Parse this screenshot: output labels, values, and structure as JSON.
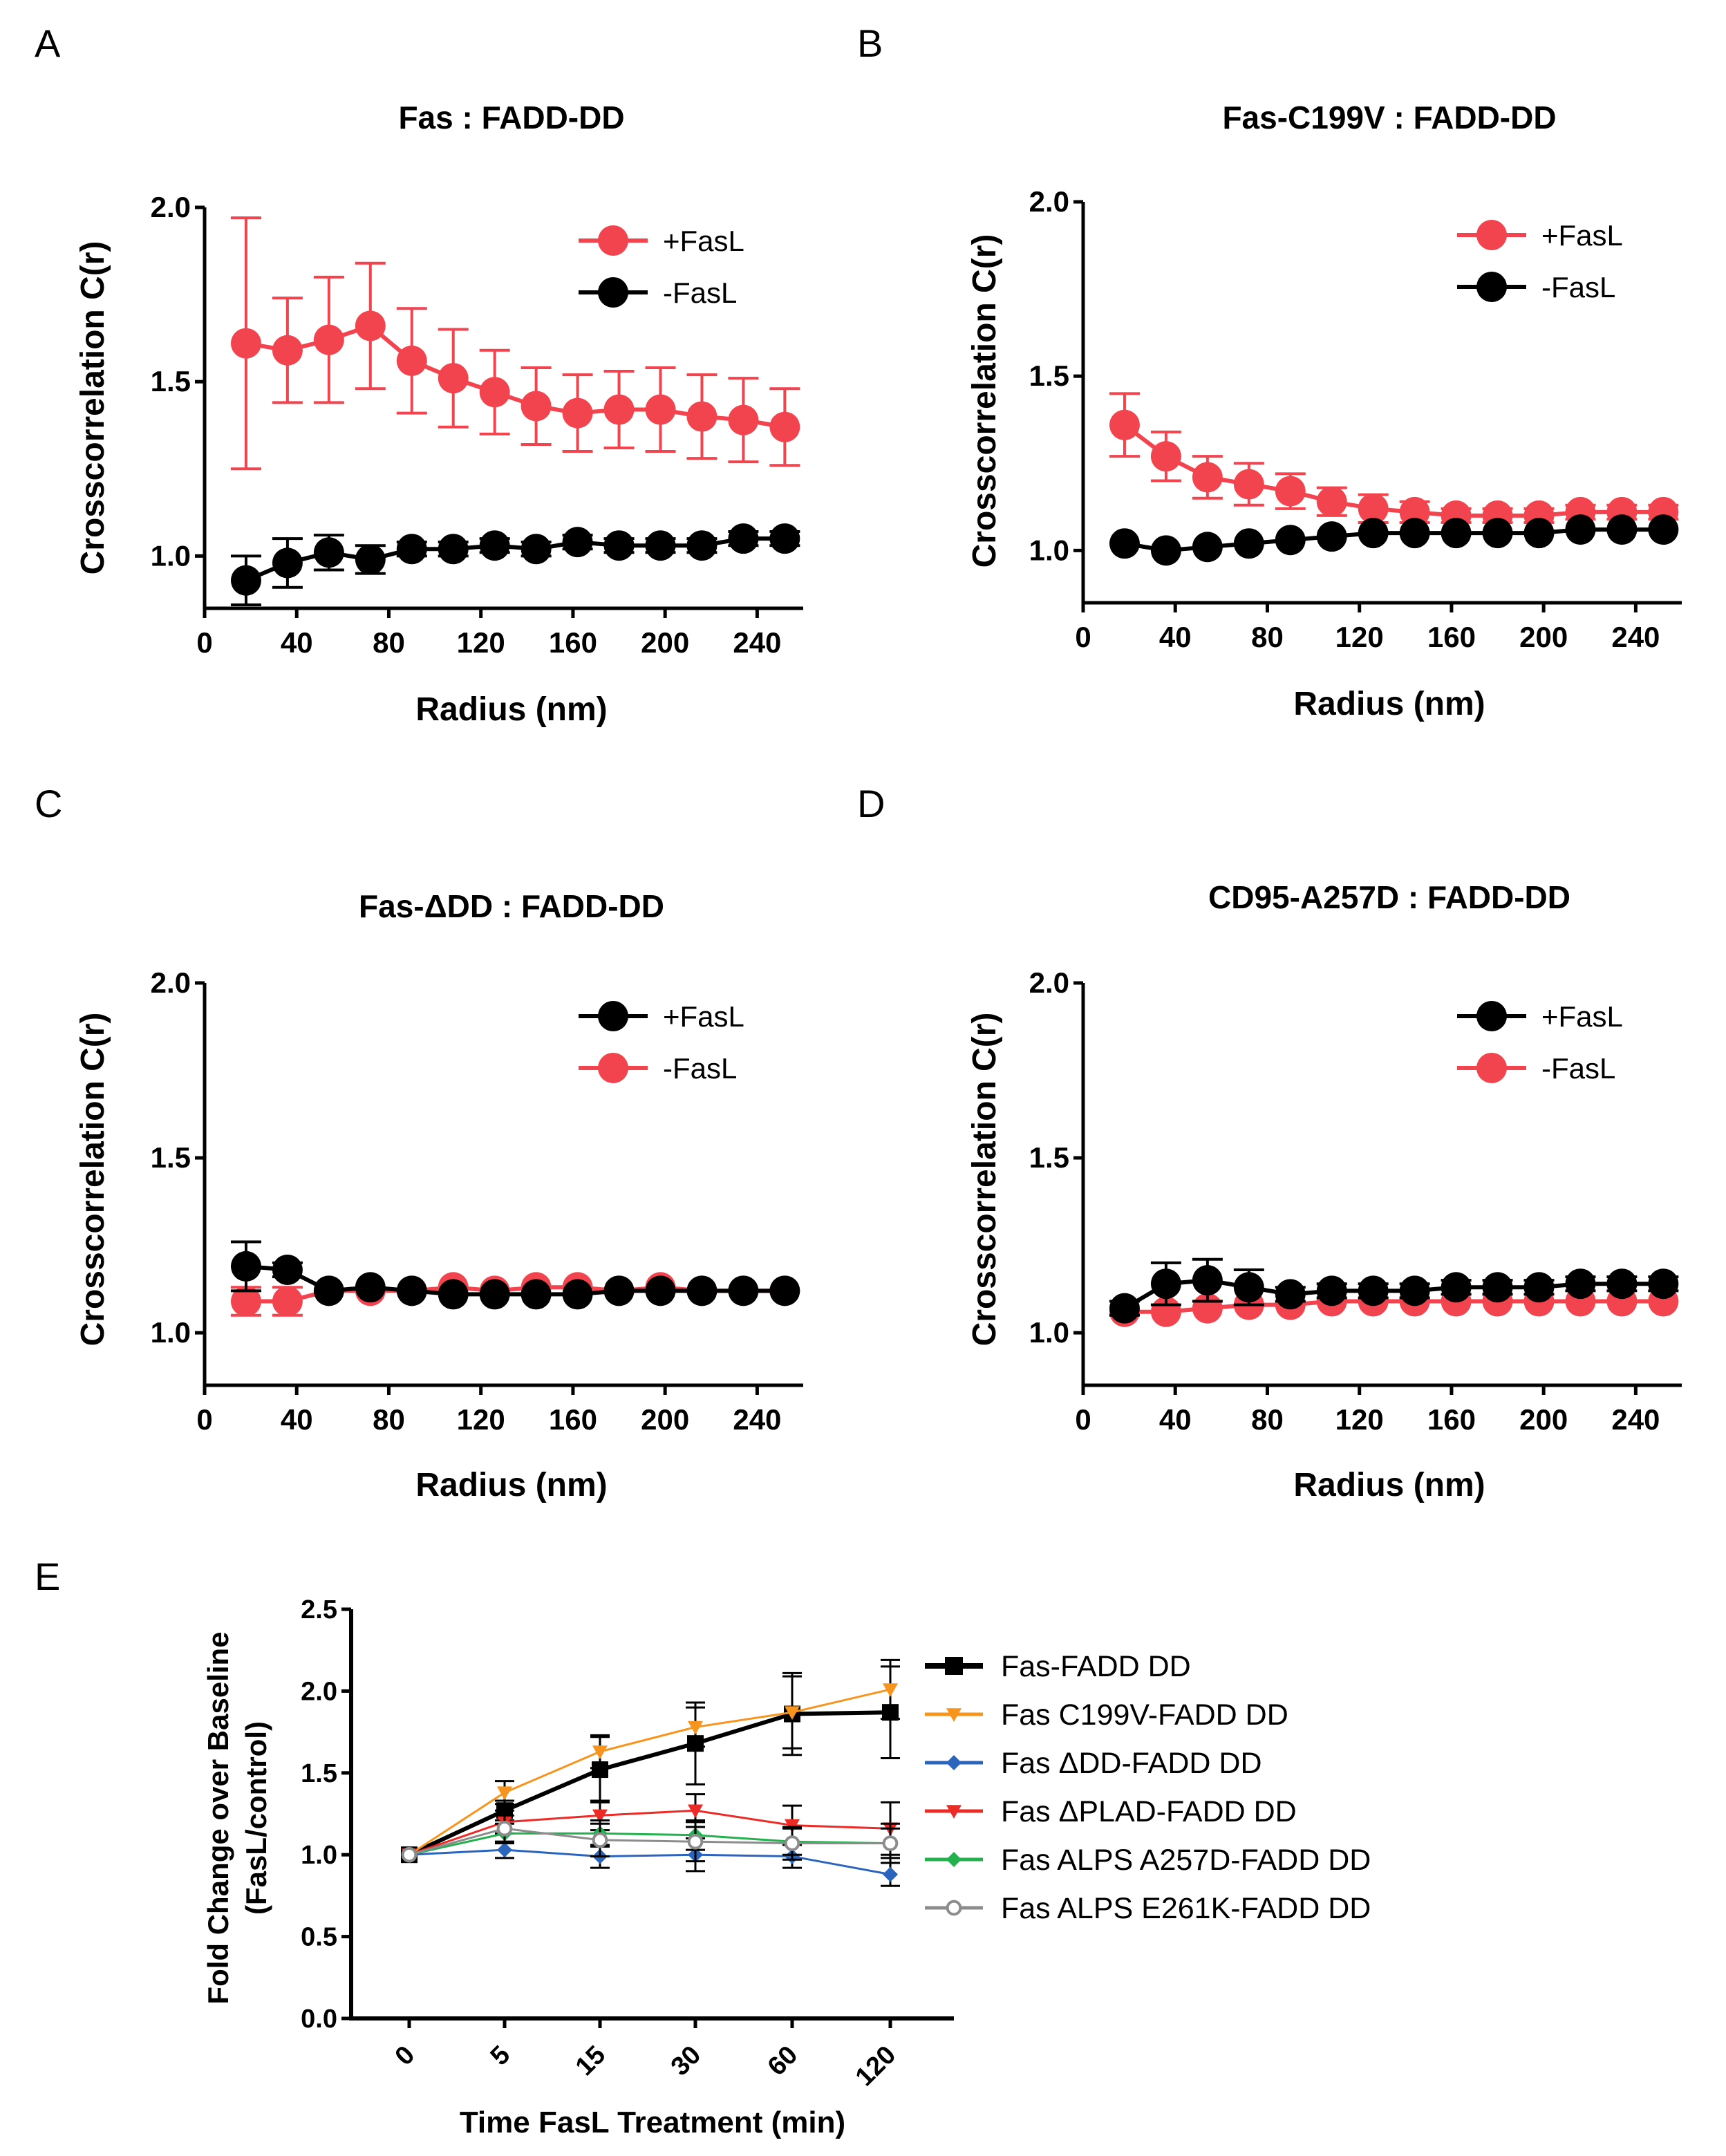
{
  "figure": {
    "panels": [
      "A",
      "B",
      "C",
      "D",
      "E"
    ]
  },
  "chart_data": [
    {
      "id": "A",
      "type": "scatter",
      "letter": "A",
      "title": "Fas : FADD-DD",
      "xlabel": "Radius (nm)",
      "ylabel": "Crosscorrelation C(r)",
      "xlim": [
        0,
        260
      ],
      "ylim": [
        0.85,
        2.0
      ],
      "xticks": [
        0,
        40,
        80,
        120,
        160,
        200,
        240
      ],
      "yticks": [
        1.0,
        1.5,
        2.0
      ],
      "ytick_labels": [
        "1.0",
        "1.5",
        "2.0"
      ],
      "legend_position": "top-right",
      "x": [
        18,
        36,
        54,
        72,
        90,
        108,
        126,
        144,
        162,
        180,
        198,
        216,
        234,
        252
      ],
      "series": [
        {
          "name": "+FasL",
          "color": "#f2444e",
          "values": [
            1.61,
            1.59,
            1.62,
            1.66,
            1.56,
            1.51,
            1.47,
            1.43,
            1.41,
            1.42,
            1.42,
            1.4,
            1.39,
            1.37
          ],
          "errors": [
            0.36,
            0.15,
            0.18,
            0.18,
            0.15,
            0.14,
            0.12,
            0.11,
            0.11,
            0.11,
            0.12,
            0.12,
            0.12,
            0.11
          ]
        },
        {
          "name": "-FasL",
          "color": "#000000",
          "values": [
            0.93,
            0.98,
            1.01,
            0.99,
            1.02,
            1.02,
            1.03,
            1.02,
            1.04,
            1.03,
            1.03,
            1.03,
            1.05,
            1.05
          ],
          "errors": [
            0.07,
            0.07,
            0.05,
            0.04,
            0.02,
            0.02,
            0.02,
            0.02,
            0.02,
            0.02,
            0.02,
            0.02,
            0.02,
            0.02
          ]
        }
      ]
    },
    {
      "id": "B",
      "type": "scatter",
      "letter": "B",
      "title": "Fas-C199V : FADD-DD",
      "xlabel": "Radius (nm)",
      "ylabel": "Crosscorrelation C(r)",
      "xlim": [
        0,
        260
      ],
      "ylim": [
        0.85,
        2.0
      ],
      "xticks": [
        0,
        40,
        80,
        120,
        160,
        200,
        240
      ],
      "yticks": [
        1.0,
        1.5,
        2.0
      ],
      "ytick_labels": [
        "1.0",
        "1.5",
        "2.0"
      ],
      "legend_position": "top-right",
      "x": [
        18,
        36,
        54,
        72,
        90,
        108,
        126,
        144,
        162,
        180,
        198,
        216,
        234,
        252
      ],
      "series": [
        {
          "name": "+FasL",
          "color": "#f2444e",
          "values": [
            1.36,
            1.27,
            1.21,
            1.19,
            1.17,
            1.14,
            1.12,
            1.11,
            1.1,
            1.1,
            1.1,
            1.11,
            1.11,
            1.11
          ],
          "errors": [
            0.09,
            0.07,
            0.06,
            0.06,
            0.05,
            0.04,
            0.04,
            0.03,
            0.02,
            0.02,
            0.02,
            0.02,
            0.02,
            0.02
          ]
        },
        {
          "name": "-FasL",
          "color": "#000000",
          "values": [
            1.02,
            1.0,
            1.01,
            1.02,
            1.03,
            1.04,
            1.05,
            1.05,
            1.05,
            1.05,
            1.05,
            1.06,
            1.06,
            1.06
          ],
          "errors": [
            0.01,
            0.01,
            0.01,
            0.01,
            0.01,
            0.01,
            0.01,
            0.01,
            0.01,
            0.01,
            0.01,
            0.01,
            0.01,
            0.01
          ]
        }
      ]
    },
    {
      "id": "C",
      "type": "scatter",
      "letter": "C",
      "title": "Fas-ΔDD : FADD-DD",
      "xlabel": "Radius (nm)",
      "ylabel": "Crosscorrelation C(r)",
      "xlim": [
        0,
        260
      ],
      "ylim": [
        0.85,
        2.0
      ],
      "xticks": [
        0,
        40,
        80,
        120,
        160,
        200,
        240
      ],
      "yticks": [
        1.0,
        1.5,
        2.0
      ],
      "ytick_labels": [
        "1.0",
        "1.5",
        "2.0"
      ],
      "legend_position": "top-right",
      "x": [
        18,
        36,
        54,
        72,
        90,
        108,
        126,
        144,
        162,
        180,
        198,
        216,
        234,
        252
      ],
      "series": [
        {
          "name": "-FasL",
          "color": "#f2444e",
          "values": [
            1.09,
            1.09,
            1.12,
            1.12,
            1.12,
            1.13,
            1.12,
            1.13,
            1.13,
            1.12,
            1.13,
            1.12,
            1.12,
            1.12
          ],
          "errors": [
            0.04,
            0.04,
            0.01,
            0.01,
            0.01,
            0.01,
            0.01,
            0.01,
            0.01,
            0.01,
            0.01,
            0.01,
            0.01,
            0.01
          ]
        },
        {
          "name": "+FasL",
          "color": "#000000",
          "values": [
            1.19,
            1.18,
            1.12,
            1.13,
            1.12,
            1.11,
            1.11,
            1.11,
            1.11,
            1.12,
            1.12,
            1.12,
            1.12,
            1.12
          ],
          "errors": [
            0.07,
            0.02,
            0.01,
            0.01,
            0.01,
            0.01,
            0.01,
            0.01,
            0.01,
            0.01,
            0.01,
            0.01,
            0.01,
            0.01
          ]
        }
      ],
      "legend_order": [
        "+FasL",
        "-FasL"
      ]
    },
    {
      "id": "D",
      "type": "scatter",
      "letter": "D",
      "title": "CD95-A257D : FADD-DD",
      "xlabel": "Radius (nm)",
      "ylabel": "Crosscorrelation C(r)",
      "xlim": [
        0,
        260
      ],
      "ylim": [
        0.85,
        2.0
      ],
      "xticks": [
        0,
        40,
        80,
        120,
        160,
        200,
        240
      ],
      "yticks": [
        1.0,
        1.5,
        2.0
      ],
      "ytick_labels": [
        "1.0",
        "1.5",
        "2.0"
      ],
      "legend_position": "top-right",
      "x": [
        18,
        36,
        54,
        72,
        90,
        108,
        126,
        144,
        162,
        180,
        198,
        216,
        234,
        252
      ],
      "series": [
        {
          "name": "-FasL",
          "color": "#f2444e",
          "values": [
            1.06,
            1.06,
            1.07,
            1.08,
            1.08,
            1.09,
            1.09,
            1.09,
            1.09,
            1.09,
            1.09,
            1.09,
            1.09,
            1.09
          ],
          "errors": [
            0.01,
            0.01,
            0.01,
            0.01,
            0.01,
            0.01,
            0.01,
            0.01,
            0.01,
            0.01,
            0.01,
            0.01,
            0.01,
            0.01
          ]
        },
        {
          "name": "+FasL",
          "color": "#000000",
          "values": [
            1.07,
            1.14,
            1.15,
            1.13,
            1.11,
            1.12,
            1.12,
            1.12,
            1.13,
            1.13,
            1.13,
            1.14,
            1.14,
            1.14
          ],
          "errors": [
            0.02,
            0.06,
            0.06,
            0.05,
            0.02,
            0.02,
            0.02,
            0.02,
            0.02,
            0.02,
            0.02,
            0.02,
            0.02,
            0.02
          ]
        }
      ],
      "legend_order": [
        "+FasL",
        "-FasL"
      ]
    },
    {
      "id": "E",
      "type": "line",
      "letter": "E",
      "title": "",
      "xlabel": "Time FasL Treatment (min)",
      "ylabel_lines": [
        "Fold Change over Baseline",
        "(FasL/control)"
      ],
      "categories": [
        "0",
        "5",
        "15",
        "30",
        "60",
        "120"
      ],
      "ylim": [
        0.0,
        2.5
      ],
      "yticks": [
        0.0,
        0.5,
        1.0,
        1.5,
        2.0,
        2.5
      ],
      "ytick_labels": [
        "0.0",
        "0.5",
        "1.0",
        "1.5",
        "2.0",
        "2.5"
      ],
      "legend_position": "right",
      "series": [
        {
          "name": "Fas-FADD DD",
          "color": "#000000",
          "marker": "square",
          "width": 6,
          "values": [
            1.0,
            1.27,
            1.52,
            1.68,
            1.86,
            1.87
          ],
          "errors": [
            0.0,
            0.06,
            0.2,
            0.25,
            0.25,
            0.28
          ]
        },
        {
          "name": "Fas C199V-FADD DD",
          "color": "#f7941d",
          "marker": "triangle-down",
          "width": 3,
          "values": [
            1.0,
            1.38,
            1.63,
            1.78,
            1.87,
            2.01
          ],
          "errors": [
            0.0,
            0.07,
            0.1,
            0.12,
            0.22,
            0.18
          ]
        },
        {
          "name": "Fas ΔDD-FADD DD",
          "color": "#2b64bd",
          "marker": "diamond",
          "width": 3,
          "values": [
            1.0,
            1.03,
            0.99,
            1.0,
            0.99,
            0.88
          ],
          "errors": [
            0.0,
            0.05,
            0.07,
            0.1,
            0.07,
            0.07
          ]
        },
        {
          "name": "Fas ΔPLAD-FADD DD",
          "color": "#ec2a26",
          "marker": "triangle-down",
          "width": 3,
          "values": [
            1.0,
            1.2,
            1.24,
            1.27,
            1.18,
            1.16
          ],
          "errors": [
            0.0,
            0.07,
            0.09,
            0.1,
            0.12,
            0.16
          ]
        },
        {
          "name": "Fas ALPS A257D-FADD DD",
          "color": "#22b14c",
          "marker": "diamond",
          "width": 3,
          "values": [
            1.0,
            1.13,
            1.13,
            1.12,
            1.08,
            1.07
          ],
          "errors": [
            0.0,
            0.06,
            0.08,
            0.09,
            0.08,
            0.09
          ]
        },
        {
          "name": "Fas ALPS E261K-FADD DD",
          "color": "#8c8c8c",
          "marker": "circle-open",
          "width": 3,
          "values": [
            1.0,
            1.16,
            1.09,
            1.08,
            1.07,
            1.07
          ],
          "errors": [
            0.0,
            0.08,
            0.1,
            0.12,
            0.1,
            0.12
          ]
        }
      ]
    }
  ]
}
